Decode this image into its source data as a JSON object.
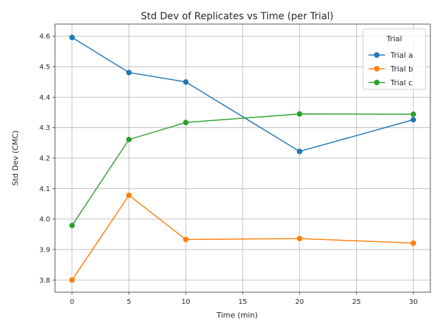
{
  "chart_data": {
    "type": "line",
    "title": "Std Dev of Replicates vs Time (per Trial)",
    "xlabel": "Time (min)",
    "ylabel": "Std Dev (CMC)",
    "x": [
      0,
      5,
      10,
      20,
      30
    ],
    "xlim": [
      -1.5,
      31.5
    ],
    "ylim": [
      3.76,
      4.64
    ],
    "xticks": [
      0,
      5,
      10,
      15,
      20,
      25,
      30
    ],
    "yticks": [
      3.8,
      3.9,
      4.0,
      4.1,
      4.2,
      4.3,
      4.4,
      4.5,
      4.6
    ],
    "grid": true,
    "legend": {
      "title": "Trial",
      "placement": "top-right"
    },
    "series": [
      {
        "name": "Trial a",
        "color": "#1f77b4",
        "values": [
          4.596,
          4.481,
          4.45,
          4.222,
          4.326
        ]
      },
      {
        "name": "Trial b",
        "color": "#ff7f0e",
        "values": [
          3.8,
          4.078,
          3.933,
          3.936,
          3.921
        ]
      },
      {
        "name": "Trial c",
        "color": "#2ca02c",
        "values": [
          3.979,
          4.261,
          4.317,
          4.345,
          4.344
        ]
      }
    ]
  }
}
